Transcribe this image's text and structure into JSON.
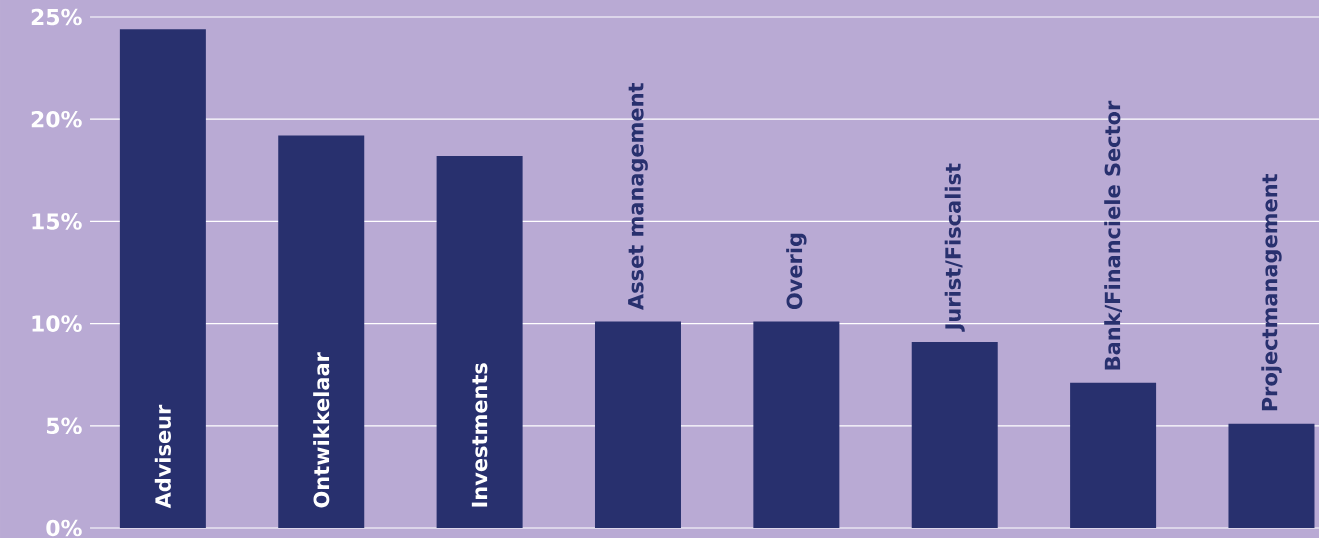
{
  "chart_data": {
    "type": "bar",
    "categories": [
      "Adviseur",
      "Ontwikkelaar",
      "Investments",
      "Asset management",
      "Overig",
      "Jurist/Fiscalist",
      "Bank/Financiele Sector",
      "Projectmanagement"
    ],
    "values": [
      24.4,
      19.2,
      18.2,
      10.1,
      10.1,
      9.1,
      7.1,
      5.1
    ],
    "color": "#28306e",
    "ylim": [
      0,
      25
    ],
    "yticks": [
      {
        "value": 0,
        "label": "0%"
      },
      {
        "value": 5,
        "label": "5%"
      },
      {
        "value": 10,
        "label": "10%"
      },
      {
        "value": 15,
        "label": "15%"
      },
      {
        "value": 20,
        "label": "20%"
      },
      {
        "value": 25,
        "label": "25%"
      }
    ],
    "grid": "y"
  }
}
